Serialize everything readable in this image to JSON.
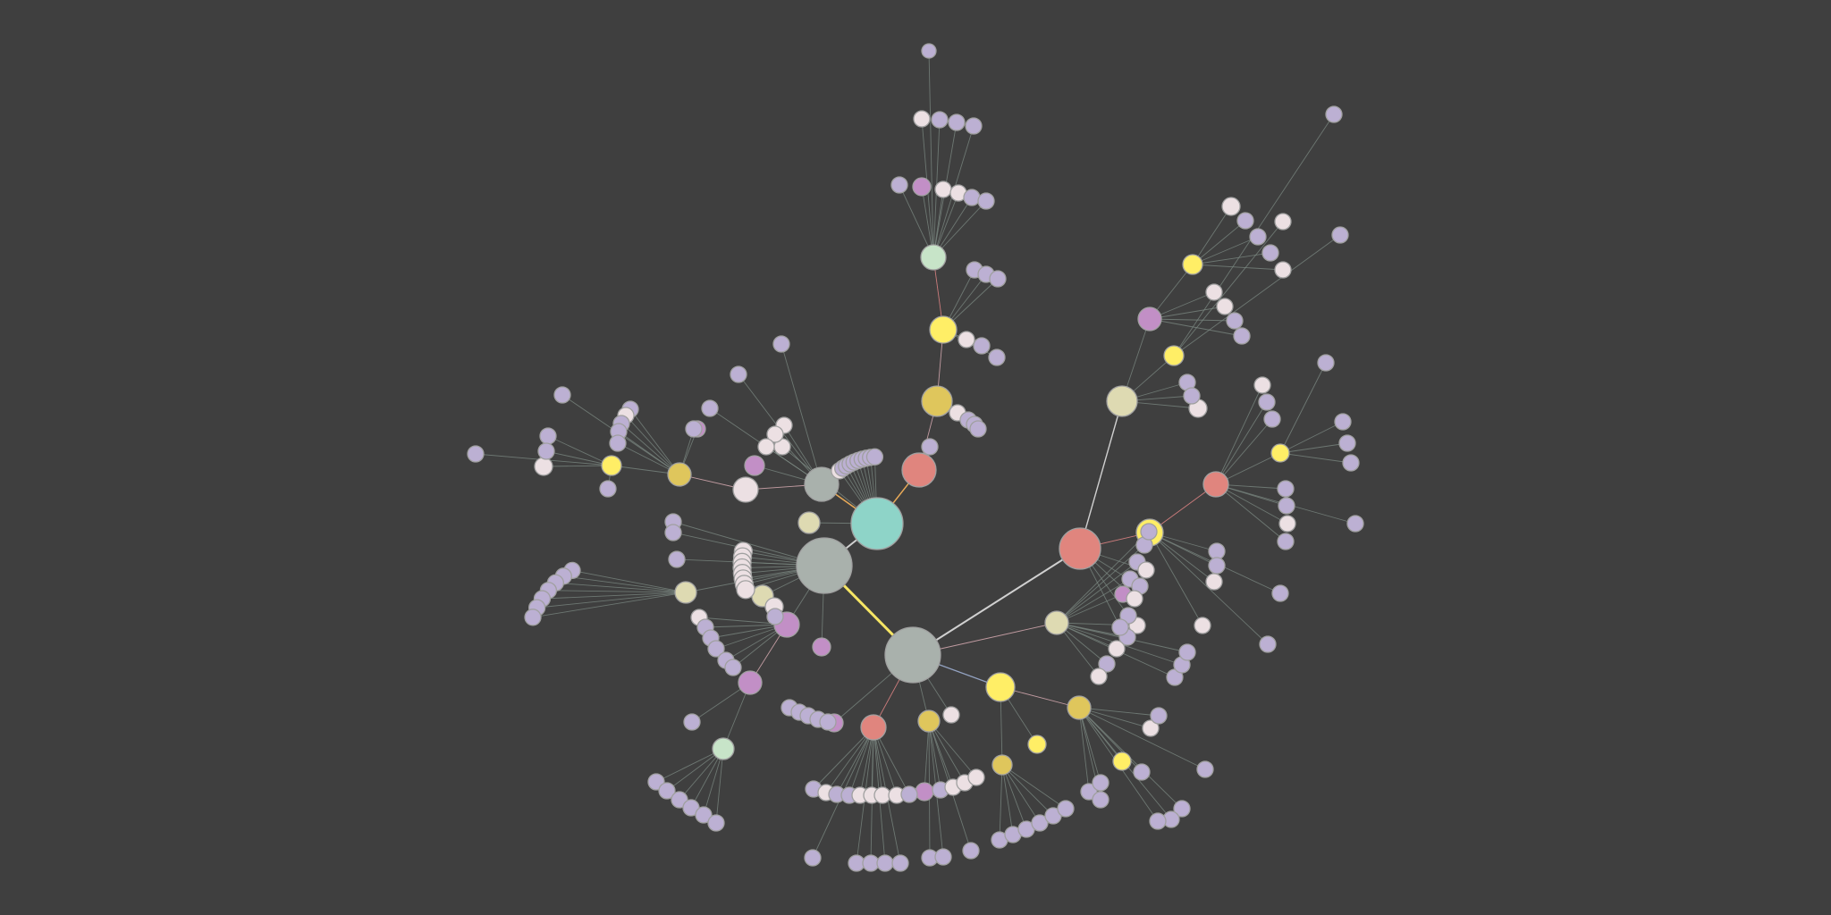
{
  "graph": {
    "background": "#3f3f3f",
    "palette": {
      "teal": "#8ed4c8",
      "gray": "#a9b1ac",
      "salmon": "#e0857e",
      "yellow": "#ffee66",
      "gold": "#dfc65c",
      "khaki": "#dedab2",
      "mint": "#c7e4c8",
      "orchid": "#c28fc6",
      "pale": "#ece0e3",
      "lavender": "#bcb0d3"
    },
    "edge_palette": {
      "default": "#7e8b84",
      "light": "#d8d8d8",
      "yellow": "#ffee66",
      "orange": "#f2b05a",
      "pink": "#c8a0a6",
      "blue": "#98a8c8",
      "salmon": "#d48080"
    },
    "node_kinds": [
      "root",
      "hub",
      "branch",
      "leaf"
    ]
  }
}
